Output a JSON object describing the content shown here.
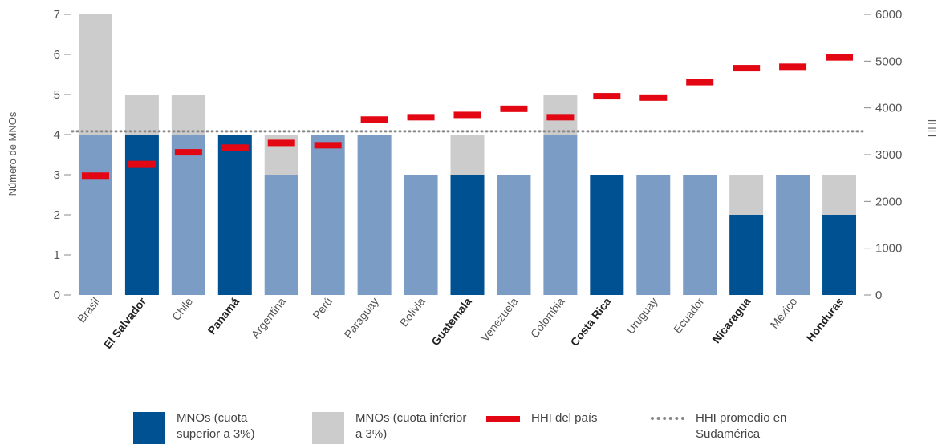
{
  "chart_data": {
    "type": "bar",
    "categories": [
      "Brasil",
      "El Salvador",
      "Chile",
      "Panamá",
      "Argentina",
      "Perú",
      "Paraguay",
      "Bolivia",
      "Guatemala",
      "Venezuela",
      "Colombia",
      "Costa Rica",
      "Uruguay",
      "Ecuador",
      "Nicaragua",
      "México",
      "Honduras"
    ],
    "highlighted_categories": [
      "El Salvador",
      "Panamá",
      "Guatemala",
      "Costa Rica",
      "Nicaragua",
      "Honduras"
    ],
    "series": [
      {
        "name": "MNOs (cuota superior a 3%)",
        "values": [
          4,
          4,
          4,
          4,
          3,
          4,
          4,
          3,
          3,
          3,
          4,
          3,
          3,
          3,
          2,
          3,
          2
        ],
        "color_regular": "#7b9cc4",
        "color_highlight": "#005191"
      },
      {
        "name": "MNOs (cuota inferior a 3%)",
        "values": [
          3,
          1,
          1,
          0,
          1,
          0,
          0,
          0,
          1,
          0,
          1,
          0,
          0,
          0,
          1,
          0,
          1
        ],
        "color": "#cccccc"
      },
      {
        "name": "HHI del país",
        "values": [
          2550,
          2800,
          3050,
          3150,
          3250,
          3200,
          3750,
          3800,
          3850,
          3980,
          3800,
          4250,
          4220,
          4550,
          4850,
          4880,
          5080
        ],
        "color": "#e30613",
        "axis": "right"
      },
      {
        "name": "HHI promedio en Sudamérica",
        "value": 3500,
        "color": "#888888",
        "axis": "right"
      }
    ],
    "ylabel": "Número de MNOs",
    "y2label": "HHI",
    "ylim": [
      0,
      7
    ],
    "y2lim": [
      0,
      6000
    ],
    "yticks": [
      "0",
      "1",
      "2",
      "3",
      "4",
      "5",
      "6",
      "7"
    ],
    "y2ticks": [
      "0",
      "1000",
      "2000",
      "3000",
      "4000",
      "5000",
      "6000"
    ],
    "legend_position": "bottom"
  },
  "legend": {
    "high_label": "MNOs (cuota superior a 3%)",
    "low_label": "MNOs (cuota inferior a 3%)",
    "hhi_label": "HHI del país",
    "avg_label": "HHI promedio en Sudamérica"
  }
}
